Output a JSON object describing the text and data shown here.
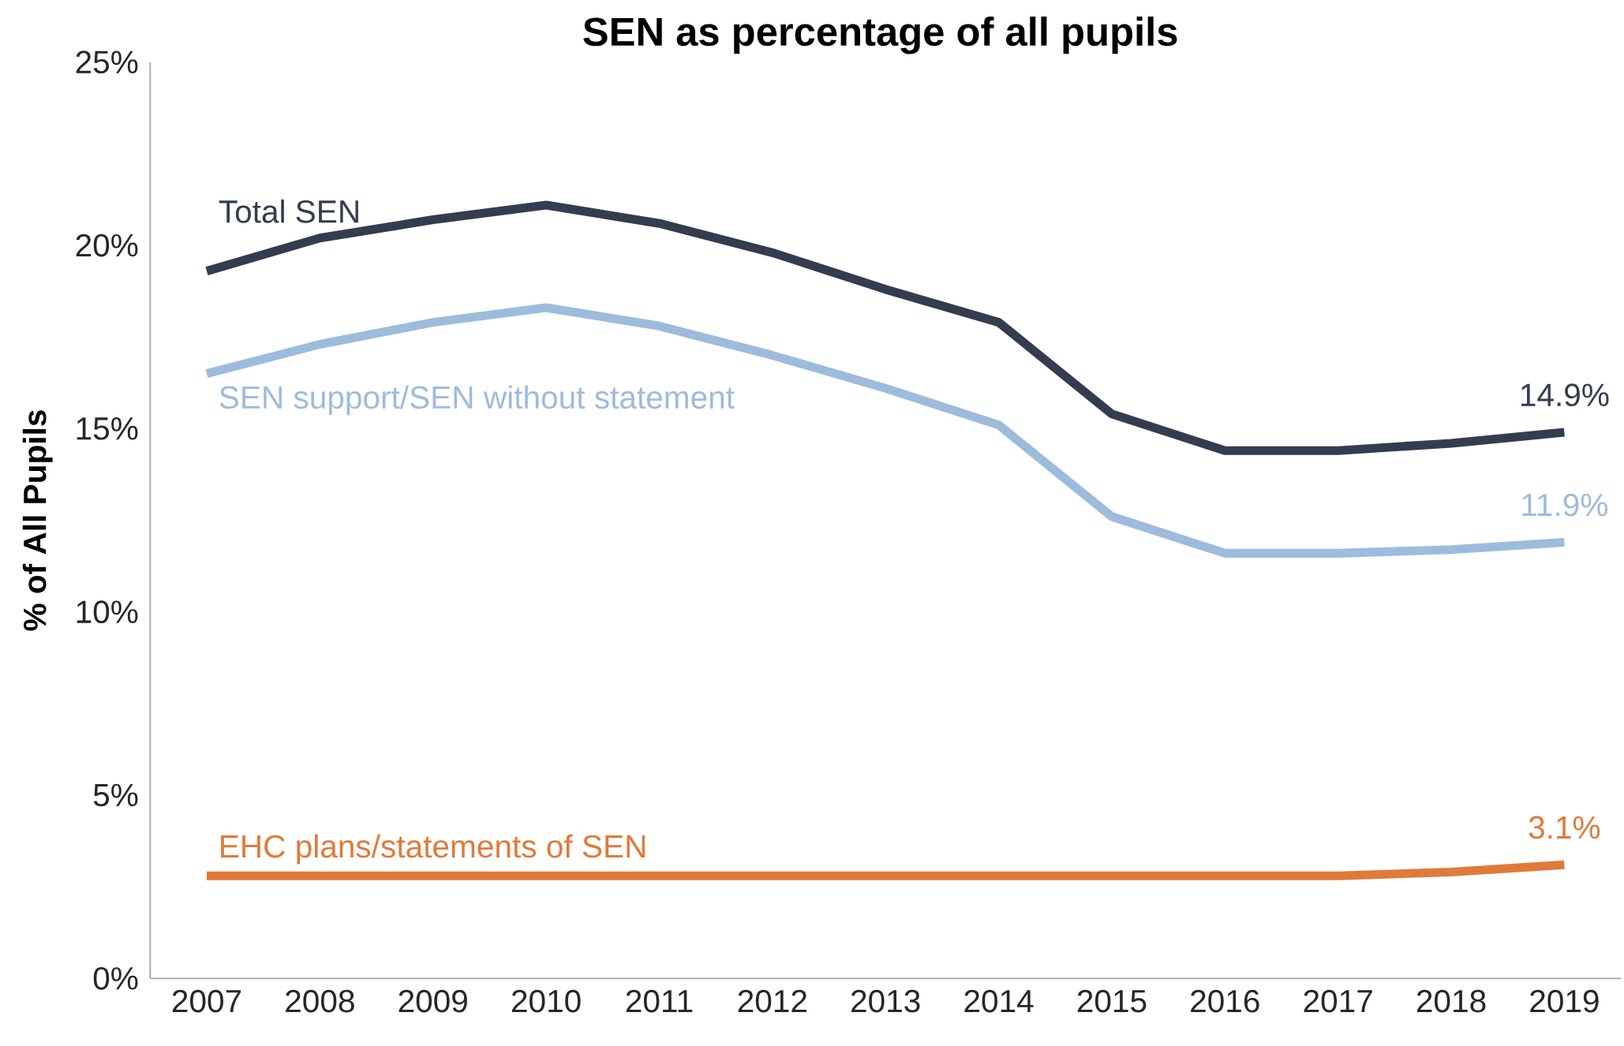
{
  "chart_data": {
    "type": "line",
    "title": "SEN as percentage of all pupils",
    "ylabel": "% of All Pupils",
    "x": [
      2007,
      2008,
      2009,
      2010,
      2011,
      2012,
      2013,
      2014,
      2015,
      2016,
      2017,
      2018,
      2019
    ],
    "xlim": [
      2006.5,
      2019.5
    ],
    "xticks": [
      2007,
      2008,
      2009,
      2010,
      2011,
      2012,
      2013,
      2014,
      2015,
      2016,
      2017,
      2018,
      2019
    ],
    "ylim": [
      0,
      25
    ],
    "yticks": [
      {
        "value": 0,
        "label": "0%"
      },
      {
        "value": 5,
        "label": "5%"
      },
      {
        "value": 10,
        "label": "10%"
      },
      {
        "value": 15,
        "label": "15%"
      },
      {
        "value": 20,
        "label": "20%"
      },
      {
        "value": 25,
        "label": "25%"
      }
    ],
    "grid": false,
    "series": [
      {
        "name": "Total SEN",
        "color": "#333d4f",
        "values": [
          19.3,
          20.2,
          20.7,
          21.1,
          20.6,
          19.8,
          18.8,
          17.9,
          15.4,
          14.4,
          14.4,
          14.6,
          14.9
        ],
        "value_labels": [
          null,
          null,
          null,
          null,
          null,
          null,
          null,
          null,
          null,
          null,
          null,
          null,
          "14.9%"
        ]
      },
      {
        "name": "SEN support/SEN without statement",
        "color": "#9dbbdd",
        "values": [
          16.5,
          17.3,
          17.9,
          18.3,
          17.8,
          17.0,
          16.1,
          15.1,
          12.6,
          11.6,
          11.6,
          11.7,
          11.9
        ],
        "value_labels": [
          null,
          null,
          null,
          null,
          null,
          null,
          null,
          null,
          null,
          null,
          null,
          null,
          "11.9%"
        ]
      },
      {
        "name": "EHC plans/statements of SEN",
        "color": "#e07a3a",
        "values": [
          2.8,
          2.8,
          2.8,
          2.8,
          2.8,
          2.8,
          2.8,
          2.8,
          2.8,
          2.8,
          2.8,
          2.9,
          3.1
        ],
        "value_labels": [
          null,
          null,
          null,
          null,
          null,
          null,
          null,
          null,
          null,
          null,
          null,
          null,
          "3.1%"
        ]
      }
    ]
  }
}
